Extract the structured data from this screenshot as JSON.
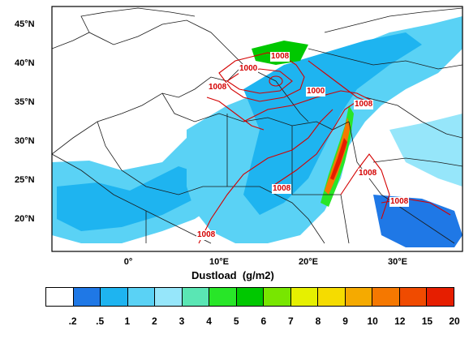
{
  "map": {
    "lat_labels": [
      "45°N",
      "40°N",
      "35°N",
      "30°N",
      "25°N",
      "20°N"
    ],
    "lon_labels": [
      "0°",
      "10°E",
      "20°E",
      "30°E"
    ],
    "contour_labels": [
      "1008",
      "1000",
      "1008",
      "1000",
      "1008",
      "1008",
      "1008",
      "1008",
      "1008"
    ],
    "contour_color": "#d40000"
  },
  "legend": {
    "title": "Dustload  (g/m2)",
    "ticks": [
      ".2",
      ".5",
      "1",
      "2",
      "3",
      "4",
      "5",
      "6",
      "7",
      "8",
      "9",
      "10",
      "12",
      "15",
      "20"
    ],
    "colors": [
      "#ffffff",
      "#1f78e6",
      "#1eb4f0",
      "#5ad2f5",
      "#96e6fa",
      "#5ae6b4",
      "#28e628",
      "#00c800",
      "#78e600",
      "#e6f000",
      "#f5dc00",
      "#f5aa00",
      "#f57800",
      "#f04b00",
      "#e61e00"
    ]
  }
}
